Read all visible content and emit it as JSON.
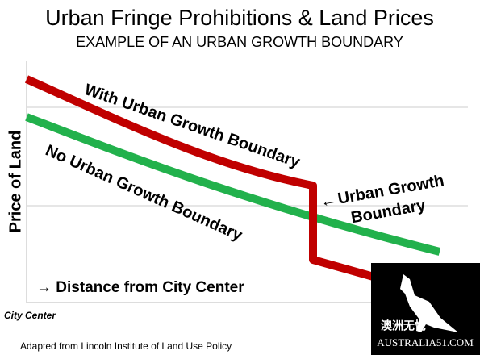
{
  "title": "Urban Fringe Prohibitions & Land Prices",
  "subtitle": "EXAMPLE OF AN URBAN GROWTH BOUNDARY",
  "y_axis_label": "Price of Land",
  "x_axis_label": "→ Distance from City Center",
  "origin_label": "City Center",
  "curves": [
    {
      "label": "With Urban Growth Boundary",
      "color": "#c00000"
    },
    {
      "label": "No Urban Growth Boundary",
      "color": "#22b14c"
    }
  ],
  "annotation": {
    "arrow": "←",
    "lines": [
      "Urban Growth",
      "Boundary"
    ]
  },
  "source": "Adapted from Lincoln Institute of Land Use Policy",
  "watermark": {
    "chinese": "澳洲无忧",
    "site": "AUSTRALIA51.COM"
  }
}
